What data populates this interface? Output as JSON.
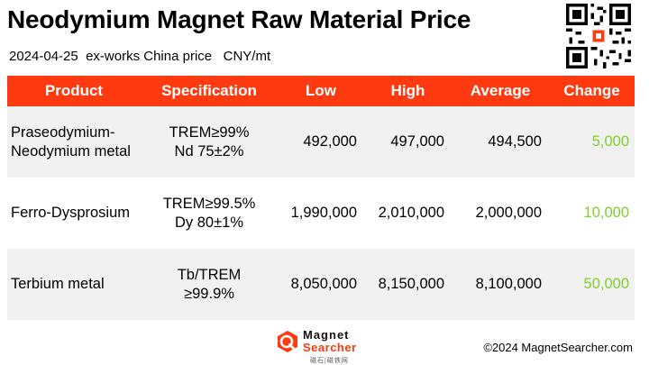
{
  "header": {
    "title": "Neodymium Magnet Raw Material Price",
    "date": "2024-04-25",
    "basis": "ex-works China price",
    "unit": "CNY/mt"
  },
  "table": {
    "columns": [
      "Product",
      "Specification",
      "Low",
      "High",
      "Average",
      "Change"
    ],
    "rows": [
      {
        "product": [
          "Praseodymium-",
          "Neodymium metal"
        ],
        "spec": [
          "TREM≥99%",
          "Nd 75±2%"
        ],
        "low": "492,000",
        "high": "497,000",
        "average": "494,500",
        "change": "5,000"
      },
      {
        "product": [
          "Ferro-Dysprosium"
        ],
        "spec": [
          "TREM≥99.5%",
          "Dy 80±1%"
        ],
        "low": "1,990,000",
        "high": "2,010,000",
        "average": "2,000,000",
        "change": "10,000"
      },
      {
        "product": [
          "Terbium metal"
        ],
        "spec": [
          "Tb/TREM",
          "≥99.9%"
        ],
        "low": "8,050,000",
        "high": "8,150,000",
        "average": "8,100,000",
        "change": "50,000"
      }
    ]
  },
  "footer": {
    "logo_line1": "Magnet",
    "logo_line2": "Searcher",
    "logo_sub": "磁石|磁铁网",
    "copyright": "©2024 MagnetSearcher.com"
  },
  "colors": {
    "header_bg": "#ff3a10",
    "change_text": "#7ecf2a",
    "alt_row_bg": "#f1f1f1"
  },
  "icons": {
    "qr": "qr-code-icon",
    "logo": "magnet-searcher-logo-icon"
  }
}
